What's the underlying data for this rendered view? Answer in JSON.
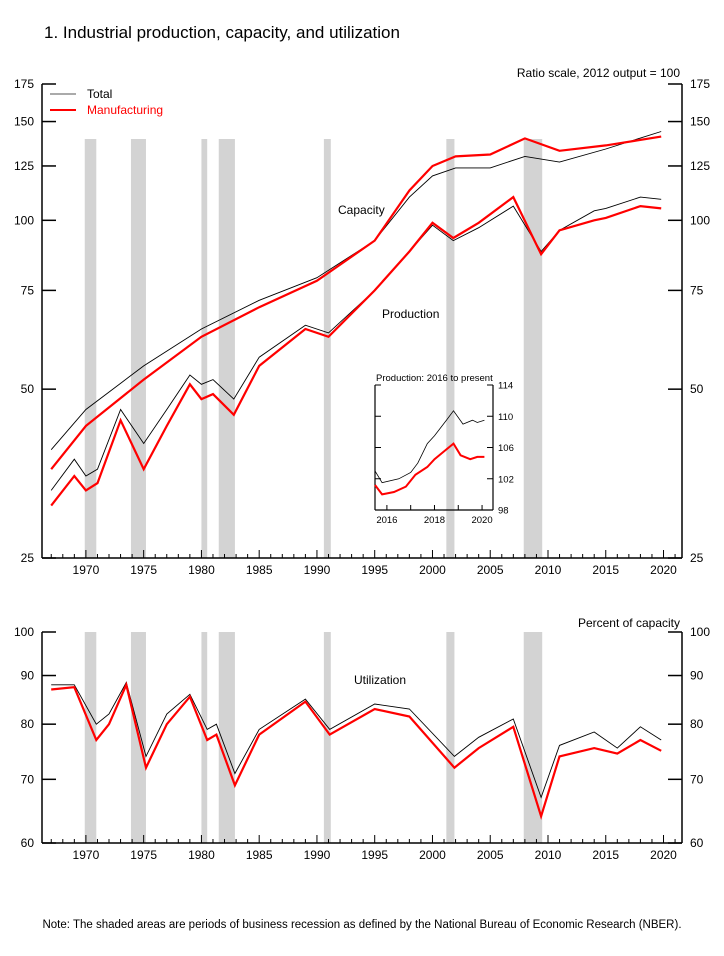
{
  "title": "1.  Industrial production, capacity, and utilization",
  "note": "Note: The shaded areas are periods of business recession as defined by the National Bureau of Economic Research (NBER).",
  "colors": {
    "total": "#000000",
    "manufacturing": "#ff0000",
    "recession": "#d3d3d3"
  },
  "chart_data": [
    {
      "type": "line",
      "title": "Production and capacity",
      "scale_note": "Ratio scale, 2012 output = 100",
      "yscale": "log",
      "ylim": [
        25,
        175
      ],
      "xlim": [
        1966.2,
        2021.6
      ],
      "yticks": [
        25,
        50,
        75,
        100,
        125,
        150,
        175
      ],
      "xticks": [
        1970,
        1975,
        1980,
        1985,
        1990,
        1995,
        2000,
        2005,
        2010,
        2015,
        2020
      ],
      "legend": {
        "placement": "top-left",
        "entries": [
          "Total",
          "Manufacturing"
        ]
      },
      "annotations": [
        "Capacity",
        "Production"
      ],
      "recessions": [
        [
          1969.9,
          1970.9
        ],
        [
          1973.9,
          1975.2
        ],
        [
          1980.0,
          1980.5
        ],
        [
          1981.5,
          1982.9
        ],
        [
          1990.6,
          1991.2
        ],
        [
          2001.2,
          2001.9
        ],
        [
          2007.9,
          2009.5
        ]
      ],
      "series": [
        {
          "name": "Capacity Total",
          "color": "total",
          "x": [
            1967,
            1970,
            1975,
            1980,
            1985,
            1990,
            1995,
            1998,
            2000,
            2002,
            2005,
            2008,
            2011,
            2015,
            2019.8
          ],
          "y": [
            39,
            46,
            55,
            64,
            72,
            79,
            92,
            110,
            120,
            124,
            124,
            130,
            127,
            134,
            144
          ]
        },
        {
          "name": "Capacity Manufacturing",
          "color": "manufacturing",
          "x": [
            1967,
            1970,
            1975,
            1980,
            1985,
            1990,
            1995,
            1998,
            2000,
            2002,
            2005,
            2008,
            2011,
            2015,
            2019.8
          ],
          "y": [
            36,
            43,
            52,
            62,
            70,
            78,
            92,
            113,
            125,
            130,
            131,
            140,
            133,
            136,
            141
          ]
        },
        {
          "name": "Production Total",
          "color": "total",
          "x": [
            1967,
            1969,
            1970,
            1971,
            1973,
            1975,
            1977,
            1979,
            1980,
            1981,
            1982.8,
            1985,
            1989,
            1991,
            1995,
            1998,
            2000,
            2001.8,
            2004,
            2007,
            2009.4,
            2011,
            2014,
            2015,
            2018,
            2019.8
          ],
          "y": [
            33,
            37.5,
            35,
            36,
            46,
            40,
            46,
            53,
            51,
            52,
            48,
            57,
            65,
            63,
            75,
            88,
            98,
            92,
            97,
            106,
            88,
            96,
            104,
            105,
            110,
            109
          ]
        },
        {
          "name": "Production Manufacturing",
          "color": "manufacturing",
          "x": [
            1967,
            1969,
            1970,
            1971,
            1973,
            1975,
            1977,
            1979,
            1980,
            1981,
            1982.8,
            1985,
            1989,
            1991,
            1995,
            1998,
            2000,
            2001.8,
            2004,
            2007,
            2009.4,
            2011,
            2014,
            2015,
            2018,
            2019.8
          ],
          "y": [
            31,
            35,
            33,
            34,
            44,
            36,
            43,
            51,
            48,
            49,
            45,
            55,
            64,
            62,
            75,
            88,
            99,
            93,
            99,
            110,
            87,
            96,
            100,
            101,
            106,
            105
          ]
        }
      ],
      "inset": {
        "title": "Production: 2016 to present",
        "xlim": [
          2015.5,
          2020.46
        ],
        "ylim": [
          98,
          114
        ],
        "yticks": [
          98,
          102,
          106,
          110,
          114
        ],
        "xticks": [
          2016,
          2018,
          2020
        ],
        "series": [
          {
            "name": "Total",
            "color": "total",
            "x": [
              2015.5,
              2015.8,
              2016.5,
              2017,
              2017.3,
              2017.7,
              2018,
              2018.5,
              2018.8,
              2019.2,
              2019.6,
              2019.8,
              2020.1
            ],
            "y": [
              103,
              101.5,
              102,
              102.8,
              104,
              106.5,
              107.5,
              109.5,
              110.7,
              109,
              109.5,
              109.2,
              109.5
            ]
          },
          {
            "name": "Manufacturing",
            "color": "manufacturing",
            "x": [
              2015.5,
              2015.8,
              2016.3,
              2016.8,
              2017.2,
              2017.7,
              2018,
              2018.4,
              2018.8,
              2019.1,
              2019.5,
              2019.8,
              2020.1
            ],
            "y": [
              101.2,
              100,
              100.3,
              101,
              102.5,
              103.5,
              104.5,
              105.5,
              106.5,
              105,
              104.5,
              104.8,
              104.8
            ]
          }
        ]
      }
    },
    {
      "type": "line",
      "title": "Utilization",
      "scale_note": "Percent of capacity",
      "yscale": "log",
      "ylim": [
        60,
        100
      ],
      "xlim": [
        1966.2,
        2021.6
      ],
      "yticks": [
        60,
        70,
        80,
        90,
        100
      ],
      "xticks": [
        1970,
        1975,
        1980,
        1985,
        1990,
        1995,
        2000,
        2005,
        2010,
        2015,
        2020
      ],
      "annotations": [
        "Utilization"
      ],
      "series": [
        {
          "name": "Total",
          "color": "total",
          "x": [
            1967,
            1969,
            1970.9,
            1972,
            1973.5,
            1975.2,
            1977,
            1979,
            1980.5,
            1981.3,
            1982.9,
            1985,
            1989,
            1991.1,
            1995,
            1998,
            2001.9,
            2004,
            2007,
            2009.4,
            2011,
            2014,
            2016,
            2018,
            2019.8
          ],
          "y": [
            88,
            88,
            80,
            82,
            88.5,
            74,
            82,
            86,
            79,
            80,
            71,
            79,
            85,
            79,
            84,
            83,
            74,
            77.5,
            81,
            67,
            76,
            78.5,
            75.5,
            79.5,
            77
          ]
        },
        {
          "name": "Manufacturing",
          "color": "manufacturing",
          "x": [
            1967,
            1969,
            1970.9,
            1972,
            1973.5,
            1975.2,
            1977,
            1979,
            1980.5,
            1981.3,
            1982.9,
            1985,
            1989,
            1991.1,
            1995,
            1998,
            2001.9,
            2004,
            2007,
            2009.4,
            2011,
            2014,
            2016,
            2018,
            2019.8
          ],
          "y": [
            87,
            87.5,
            77,
            80,
            88,
            72,
            80,
            85.5,
            77,
            78,
            69,
            78,
            84.5,
            78,
            83,
            81.5,
            72,
            75.5,
            79.5,
            64,
            74,
            75.5,
            74.5,
            77,
            75
          ]
        }
      ]
    }
  ]
}
